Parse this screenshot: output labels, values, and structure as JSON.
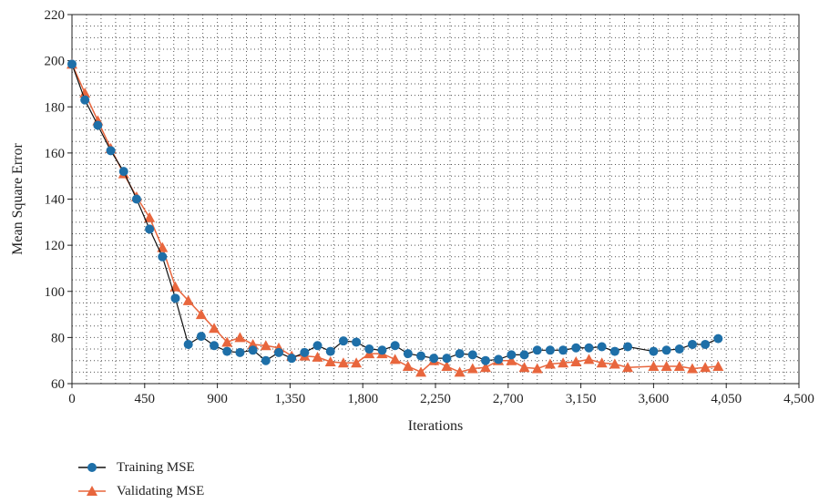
{
  "colors": {
    "training": "#1e6fa8",
    "training_line": "#111111",
    "validating": "#e8663d",
    "grid": "#555555",
    "axis": "#222222"
  },
  "chart_data": {
    "type": "line",
    "xlabel": "Iterations",
    "ylabel": "Mean Square Error",
    "xlim": [
      0,
      4500
    ],
    "ylim": [
      60,
      220
    ],
    "xticks": [
      0,
      450,
      900,
      1350,
      1800,
      2250,
      2700,
      3150,
      3600,
      4050,
      4500
    ],
    "xtick_labels": [
      "0",
      "450",
      "900",
      "1,350",
      "1,800",
      "2,250",
      "2,700",
      "3,150",
      "3,600",
      "4,050",
      "4,500"
    ],
    "yticks": [
      60,
      80,
      100,
      120,
      140,
      160,
      180,
      200,
      220
    ],
    "ytick_labels": [
      "60",
      "80",
      "100",
      "120",
      "140",
      "160",
      "180",
      "200",
      "220"
    ],
    "grid": true,
    "legend_position": "bottom-left",
    "series": [
      {
        "name": "Training MSE",
        "marker": "circle",
        "x": [
          0,
          80,
          160,
          240,
          320,
          400,
          480,
          560,
          640,
          720,
          800,
          880,
          960,
          1040,
          1120,
          1200,
          1280,
          1360,
          1440,
          1520,
          1600,
          1680,
          1760,
          1840,
          1920,
          2000,
          2080,
          2160,
          2240,
          2320,
          2400,
          2480,
          2560,
          2640,
          2720,
          2800,
          2880,
          2960,
          3040,
          3120,
          3200,
          3280,
          3360,
          3440,
          3600,
          3680,
          3760,
          3840,
          3920,
          4000
        ],
        "values": [
          198.5,
          183,
          172,
          161,
          152,
          140,
          127,
          115,
          97,
          77,
          80.5,
          76.5,
          74,
          73.5,
          74.5,
          70,
          73.5,
          71,
          73.5,
          76.5,
          74,
          78.5,
          78,
          75,
          74.5,
          76.5,
          73,
          72,
          71,
          71,
          73,
          72.5,
          70,
          70.5,
          72.5,
          72.5,
          74.5,
          74.5,
          74.5,
          75.5,
          75.5,
          76,
          74,
          76,
          74,
          74.5,
          75,
          77,
          77,
          79.5
        ]
      },
      {
        "name": "Validating MSE",
        "marker": "triangle",
        "x": [
          0,
          80,
          160,
          240,
          320,
          400,
          480,
          560,
          640,
          720,
          800,
          880,
          960,
          1040,
          1120,
          1200,
          1280,
          1360,
          1440,
          1520,
          1600,
          1680,
          1760,
          1840,
          1920,
          2000,
          2080,
          2160,
          2240,
          2320,
          2400,
          2480,
          2560,
          2640,
          2720,
          2800,
          2880,
          2960,
          3040,
          3120,
          3200,
          3280,
          3360,
          3440,
          3600,
          3680,
          3760,
          3840,
          3920,
          4000
        ],
        "values": [
          198.5,
          186,
          174,
          162,
          151,
          141,
          132,
          119,
          102,
          96,
          90,
          84,
          78,
          80,
          77,
          76.5,
          75.5,
          72,
          72,
          71.5,
          69.5,
          69,
          69,
          73,
          73,
          70.5,
          67.5,
          65,
          70,
          67.5,
          65,
          66.5,
          67,
          70,
          70,
          67,
          66.5,
          68.5,
          69,
          69.5,
          70.5,
          69,
          68.5,
          67,
          67.5,
          67.5,
          67.5,
          66.5,
          67,
          67.5
        ]
      }
    ]
  }
}
